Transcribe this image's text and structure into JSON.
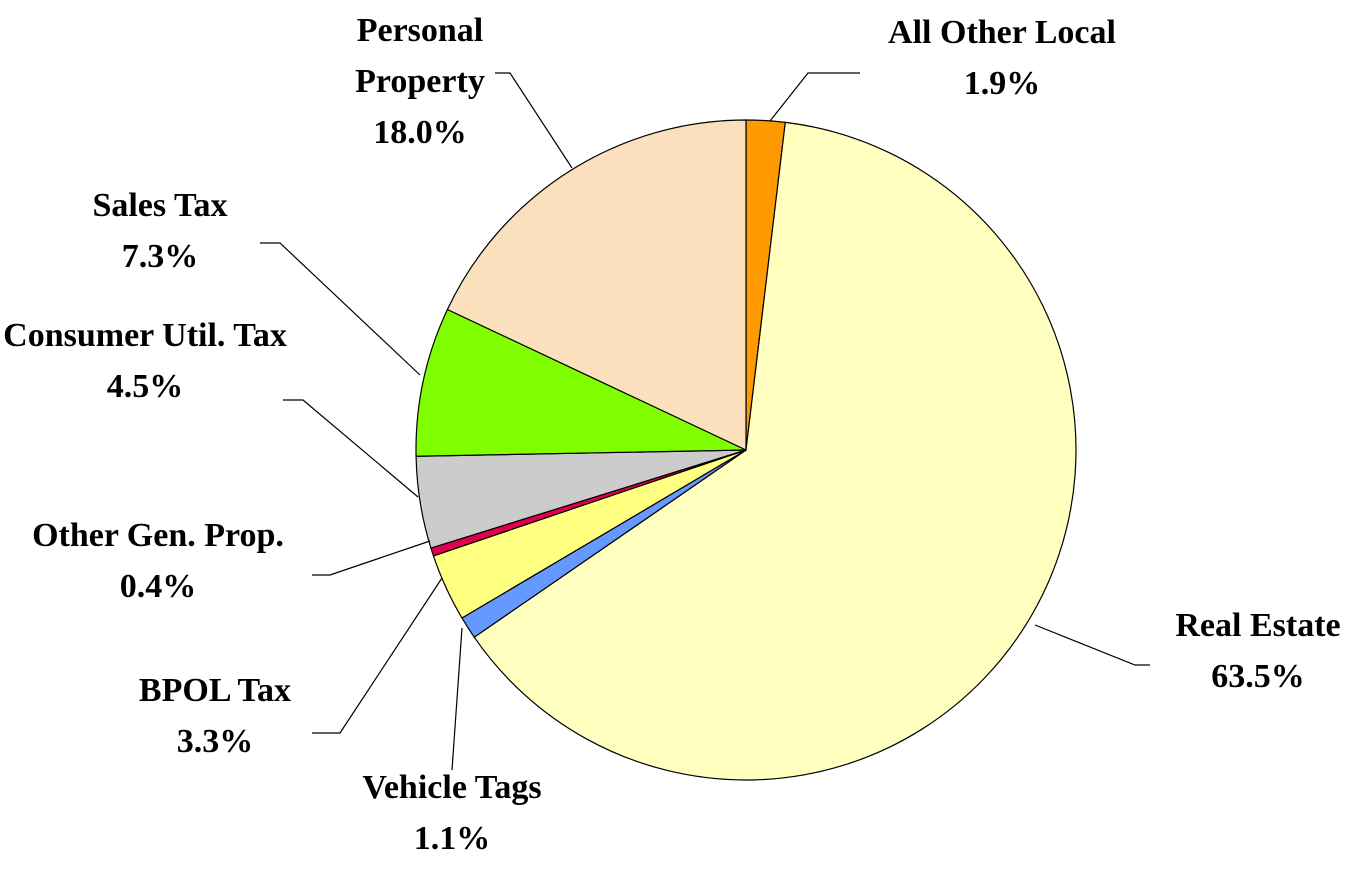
{
  "chart_data": {
    "type": "pie",
    "categories": [
      "All Other Local",
      "Real Estate",
      "Vehicle Tags",
      "BPOL Tax",
      "Other Gen. Prop.",
      "Consumer Util. Tax",
      "Sales Tax",
      "Personal Property"
    ],
    "values": [
      1.9,
      63.5,
      1.1,
      3.3,
      0.4,
      4.5,
      7.3,
      18.0
    ],
    "value_labels": [
      "1.9%",
      "63.5%",
      "1.1%",
      "3.3%",
      "0.4%",
      "4.5%",
      "7.3%",
      "18.0%"
    ],
    "colors": [
      "#ff9900",
      "#ffffc0",
      "#6699ff",
      "#ffff80",
      "#e0004d",
      "#cccccc",
      "#80ff00",
      "#fae0bd"
    ]
  }
}
